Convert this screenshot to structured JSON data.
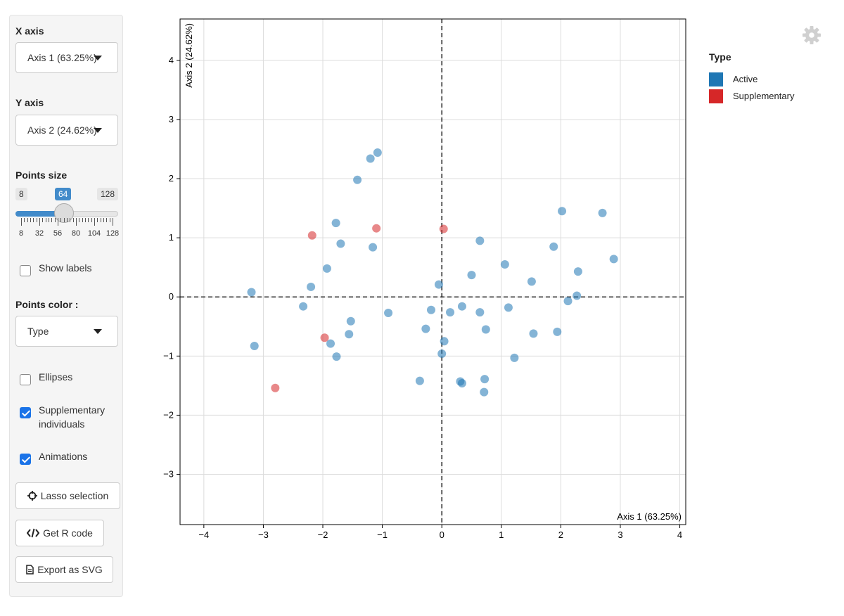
{
  "sidebar": {
    "x_axis": {
      "label": "X axis",
      "value": "Axis 1 (63.25%)"
    },
    "y_axis": {
      "label": "Y axis",
      "value": "Axis 2 (24.62%)"
    },
    "points_size": {
      "label": "Points size",
      "min_label": "8",
      "value_label": "64",
      "max_label": "128",
      "value": 64,
      "tick_labels": [
        "8",
        "32",
        "56",
        "80",
        "104",
        "128"
      ]
    },
    "show_labels": {
      "label": "Show labels",
      "checked": false
    },
    "points_color": {
      "label": "Points color :",
      "value": "Type"
    },
    "ellipses": {
      "label": "Ellipses",
      "checked": false
    },
    "supplementary": {
      "label_line1": "Supplementary",
      "label_line2": "individuals",
      "checked": true
    },
    "animations": {
      "label": "Animations",
      "checked": true
    },
    "buttons": {
      "lasso": "Lasso selection",
      "get_r_code": "Get R code",
      "export_svg": "Export as SVG"
    }
  },
  "icons": {
    "settings": "gear-icon",
    "lasso": "crosshair-icon",
    "code": "code-icon",
    "export": "file-icon"
  },
  "legend": {
    "title": "Type",
    "items": [
      {
        "label": "Active",
        "color": "#1f77b4"
      },
      {
        "label": "Supplementary",
        "color": "#d62728"
      }
    ]
  },
  "chart_data": {
    "type": "scatter",
    "xlabel": "Axis 1 (63.25%)",
    "ylabel": "Axis 2 (24.62%)",
    "xlim": [
      -4.4,
      4.1
    ],
    "ylim": [
      -3.85,
      4.7
    ],
    "xticks": [
      -4,
      -3,
      -2,
      -1,
      0,
      1,
      2,
      3,
      4
    ],
    "yticks": [
      -3,
      -2,
      -1,
      0,
      1,
      2,
      3,
      4
    ],
    "grid": true,
    "reference_lines": {
      "x": 0,
      "y": 0,
      "style": "dashed"
    },
    "series": [
      {
        "name": "Active",
        "color": "#1f77b4",
        "points": [
          [
            -1.08,
            2.44
          ],
          [
            -1.2,
            2.34
          ],
          [
            -1.42,
            1.98
          ],
          [
            -1.78,
            1.25
          ],
          [
            -1.7,
            0.9
          ],
          [
            -1.16,
            0.84
          ],
          [
            -1.93,
            0.48
          ],
          [
            -2.2,
            0.17
          ],
          [
            -3.2,
            0.08
          ],
          [
            -2.33,
            -0.16
          ],
          [
            -3.15,
            -0.83
          ],
          [
            -1.53,
            -0.41
          ],
          [
            -1.56,
            -0.63
          ],
          [
            -1.87,
            -0.79
          ],
          [
            -1.77,
            -1.01
          ],
          [
            -0.9,
            -0.27
          ],
          [
            -0.18,
            -0.22
          ],
          [
            -0.27,
            -0.54
          ],
          [
            0.14,
            -0.26
          ],
          [
            0.34,
            -0.16
          ],
          [
            -0.05,
            0.21
          ],
          [
            0.5,
            0.37
          ],
          [
            0.64,
            0.95
          ],
          [
            1.06,
            0.55
          ],
          [
            0.64,
            -0.26
          ],
          [
            0.74,
            -0.55
          ],
          [
            1.12,
            -0.18
          ],
          [
            0.04,
            -0.75
          ],
          [
            0.0,
            -0.96
          ],
          [
            -0.37,
            -1.42
          ],
          [
            0.31,
            -1.43
          ],
          [
            0.34,
            -1.46
          ],
          [
            0.72,
            -1.39
          ],
          [
            0.71,
            -1.61
          ],
          [
            1.22,
            -1.03
          ],
          [
            1.51,
            0.26
          ],
          [
            1.54,
            -0.62
          ],
          [
            1.88,
            0.85
          ],
          [
            1.94,
            -0.59
          ],
          [
            2.02,
            1.45
          ],
          [
            2.12,
            -0.07
          ],
          [
            2.27,
            0.02
          ],
          [
            2.29,
            0.43
          ],
          [
            2.7,
            1.42
          ],
          [
            2.89,
            0.64
          ]
        ]
      },
      {
        "name": "Supplementary",
        "color": "#d62728",
        "points": [
          [
            -2.18,
            1.04
          ],
          [
            -1.1,
            1.16
          ],
          [
            0.03,
            1.15
          ],
          [
            -1.97,
            -0.69
          ],
          [
            -2.8,
            -1.54
          ]
        ]
      }
    ]
  }
}
